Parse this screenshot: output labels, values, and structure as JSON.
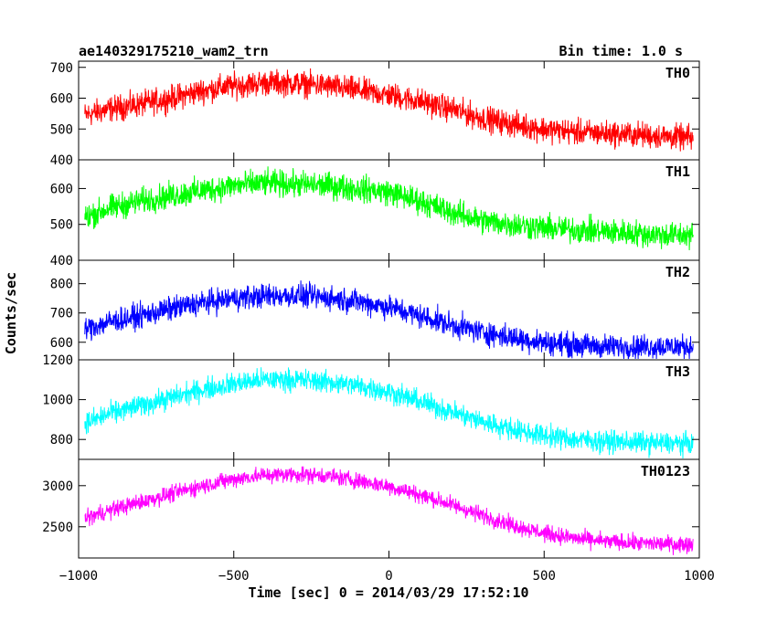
{
  "header": {
    "title": "ae140329175210_wam2_trn",
    "bin_time": "Bin time: 1.0 s"
  },
  "chart_data": {
    "type": "line",
    "xlabel": "Time [sec] 0 = 2014/03/29 17:52:10",
    "ylabel": "Counts/sec",
    "xlim": [
      -1000,
      1000
    ],
    "x_ticks": [
      -1000,
      -500,
      0,
      500,
      1000
    ],
    "series_note_x": [
      -980,
      -900,
      -800,
      -700,
      -600,
      -500,
      -400,
      -300,
      -200,
      -100,
      0,
      100,
      200,
      300,
      400,
      500,
      600,
      700,
      800,
      900,
      980
    ],
    "series": [
      {
        "name": "TH0",
        "color": "#ff0000",
        "ylim": [
          400,
          720
        ],
        "y_ticks": [
          400,
          500,
          600,
          700
        ],
        "x": [
          -980,
          -900,
          -800,
          -700,
          -600,
          -500,
          -400,
          -300,
          -200,
          -100,
          0,
          100,
          200,
          300,
          400,
          500,
          600,
          700,
          800,
          900,
          980
        ],
        "values": [
          545,
          565,
          580,
          600,
          625,
          640,
          650,
          648,
          640,
          625,
          610,
          590,
          565,
          535,
          515,
          500,
          490,
          485,
          482,
          475,
          470
        ],
        "noise": 45
      },
      {
        "name": "TH1",
        "color": "#00ff00",
        "ylim": [
          400,
          680
        ],
        "y_ticks": [
          400,
          500,
          600
        ],
        "x": [
          -980,
          -900,
          -800,
          -700,
          -600,
          -500,
          -400,
          -300,
          -200,
          -100,
          0,
          100,
          200,
          300,
          400,
          500,
          600,
          700,
          800,
          900,
          980
        ],
        "values": [
          520,
          545,
          565,
          580,
          595,
          608,
          615,
          612,
          608,
          600,
          590,
          565,
          535,
          510,
          500,
          490,
          485,
          480,
          475,
          470,
          470
        ],
        "noise": 40
      },
      {
        "name": "TH2",
        "color": "#0000ff",
        "ylim": [
          540,
          880
        ],
        "y_ticks": [
          600,
          700,
          800
        ],
        "x": [
          -980,
          -900,
          -800,
          -700,
          -600,
          -500,
          -400,
          -300,
          -200,
          -100,
          0,
          100,
          200,
          300,
          400,
          500,
          600,
          700,
          800,
          900,
          980
        ],
        "values": [
          645,
          670,
          690,
          715,
          735,
          750,
          758,
          760,
          752,
          740,
          720,
          690,
          660,
          635,
          615,
          600,
          590,
          585,
          585,
          585,
          585
        ],
        "noise": 45
      },
      {
        "name": "TH3",
        "color": "#00ffff",
        "ylim": [
          700,
          1200
        ],
        "y_ticks": [
          800,
          1000,
          1200
        ],
        "x": [
          -980,
          -900,
          -800,
          -700,
          -600,
          -500,
          -400,
          -300,
          -200,
          -100,
          0,
          100,
          200,
          300,
          400,
          500,
          600,
          700,
          800,
          900,
          980
        ],
        "values": [
          880,
          930,
          970,
          1010,
          1050,
          1080,
          1100,
          1100,
          1090,
          1070,
          1040,
          990,
          940,
          890,
          850,
          820,
          800,
          790,
          785,
          780,
          780
        ],
        "noise": 60
      },
      {
        "name": "TH0123",
        "color": "#ff00ff",
        "ylim": [
          2120,
          3320
        ],
        "y_ticks": [
          2500,
          3000
        ],
        "x": [
          -980,
          -900,
          -800,
          -700,
          -600,
          -500,
          -400,
          -300,
          -200,
          -100,
          0,
          100,
          200,
          300,
          400,
          500,
          600,
          700,
          800,
          900,
          980
        ],
        "values": [
          2600,
          2700,
          2800,
          2900,
          3000,
          3080,
          3130,
          3140,
          3120,
          3060,
          2990,
          2890,
          2770,
          2640,
          2520,
          2420,
          2360,
          2320,
          2300,
          2290,
          2290
        ],
        "noise": 110
      }
    ]
  }
}
